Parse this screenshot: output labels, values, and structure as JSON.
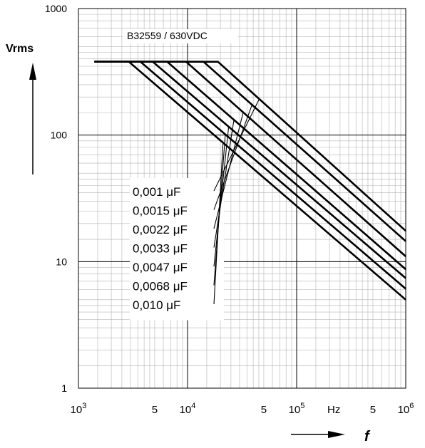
{
  "chart_data": {
    "type": "line",
    "title": "B32559 / 630VDC",
    "ylabel": "Vrms",
    "xlabel": "f",
    "x_unit": "Hz",
    "x_scale": "log",
    "y_scale": "log",
    "xlim": [
      1000,
      1000000
    ],
    "ylim": [
      1,
      1000
    ],
    "grid": true,
    "y_ticks": [
      {
        "value": 1,
        "label": "1"
      },
      {
        "value": 10,
        "label": "10"
      },
      {
        "value": 100,
        "label": "100"
      },
      {
        "value": 1000,
        "label": "1000"
      }
    ],
    "x_ticks": [
      {
        "value": 1000,
        "base": "10",
        "exp": "3"
      },
      {
        "value": 5000,
        "base": "5",
        "exp": ""
      },
      {
        "value": 10000,
        "base": "10",
        "exp": "4"
      },
      {
        "value": 50000,
        "base": "5",
        "exp": ""
      },
      {
        "value": 100000,
        "base": "10",
        "exp": "5"
      },
      {
        "value": 500000,
        "base": "5",
        "exp": ""
      },
      {
        "value": 1000000,
        "base": "10",
        "exp": "6"
      }
    ],
    "series": [
      {
        "name": "0,001 μF",
        "points": [
          [
            1400,
            380
          ],
          [
            19000,
            380
          ],
          [
            1000000,
            17.5
          ]
        ]
      },
      {
        "name": "0,0015 μF",
        "points": [
          [
            1400,
            380
          ],
          [
            14000,
            380
          ],
          [
            1000000,
            14.5
          ]
        ]
      },
      {
        "name": "0,0022 μF",
        "points": [
          [
            1400,
            380
          ],
          [
            9700,
            380
          ],
          [
            1000000,
            11
          ]
        ]
      },
      {
        "name": "0,0033 μF",
        "points": [
          [
            1400,
            380
          ],
          [
            6500,
            380
          ],
          [
            1000000,
            8.7
          ]
        ]
      },
      {
        "name": "0,0047 μF",
        "points": [
          [
            1400,
            380
          ],
          [
            4800,
            380
          ],
          [
            1000000,
            7.4
          ]
        ]
      },
      {
        "name": "0,0068 μF",
        "points": [
          [
            1400,
            380
          ],
          [
            3700,
            380
          ],
          [
            1000000,
            6.1
          ]
        ]
      },
      {
        "name": "0,010 μF",
        "points": [
          [
            1400,
            380
          ],
          [
            2900,
            380
          ],
          [
            1000000,
            5
          ]
        ]
      }
    ]
  }
}
